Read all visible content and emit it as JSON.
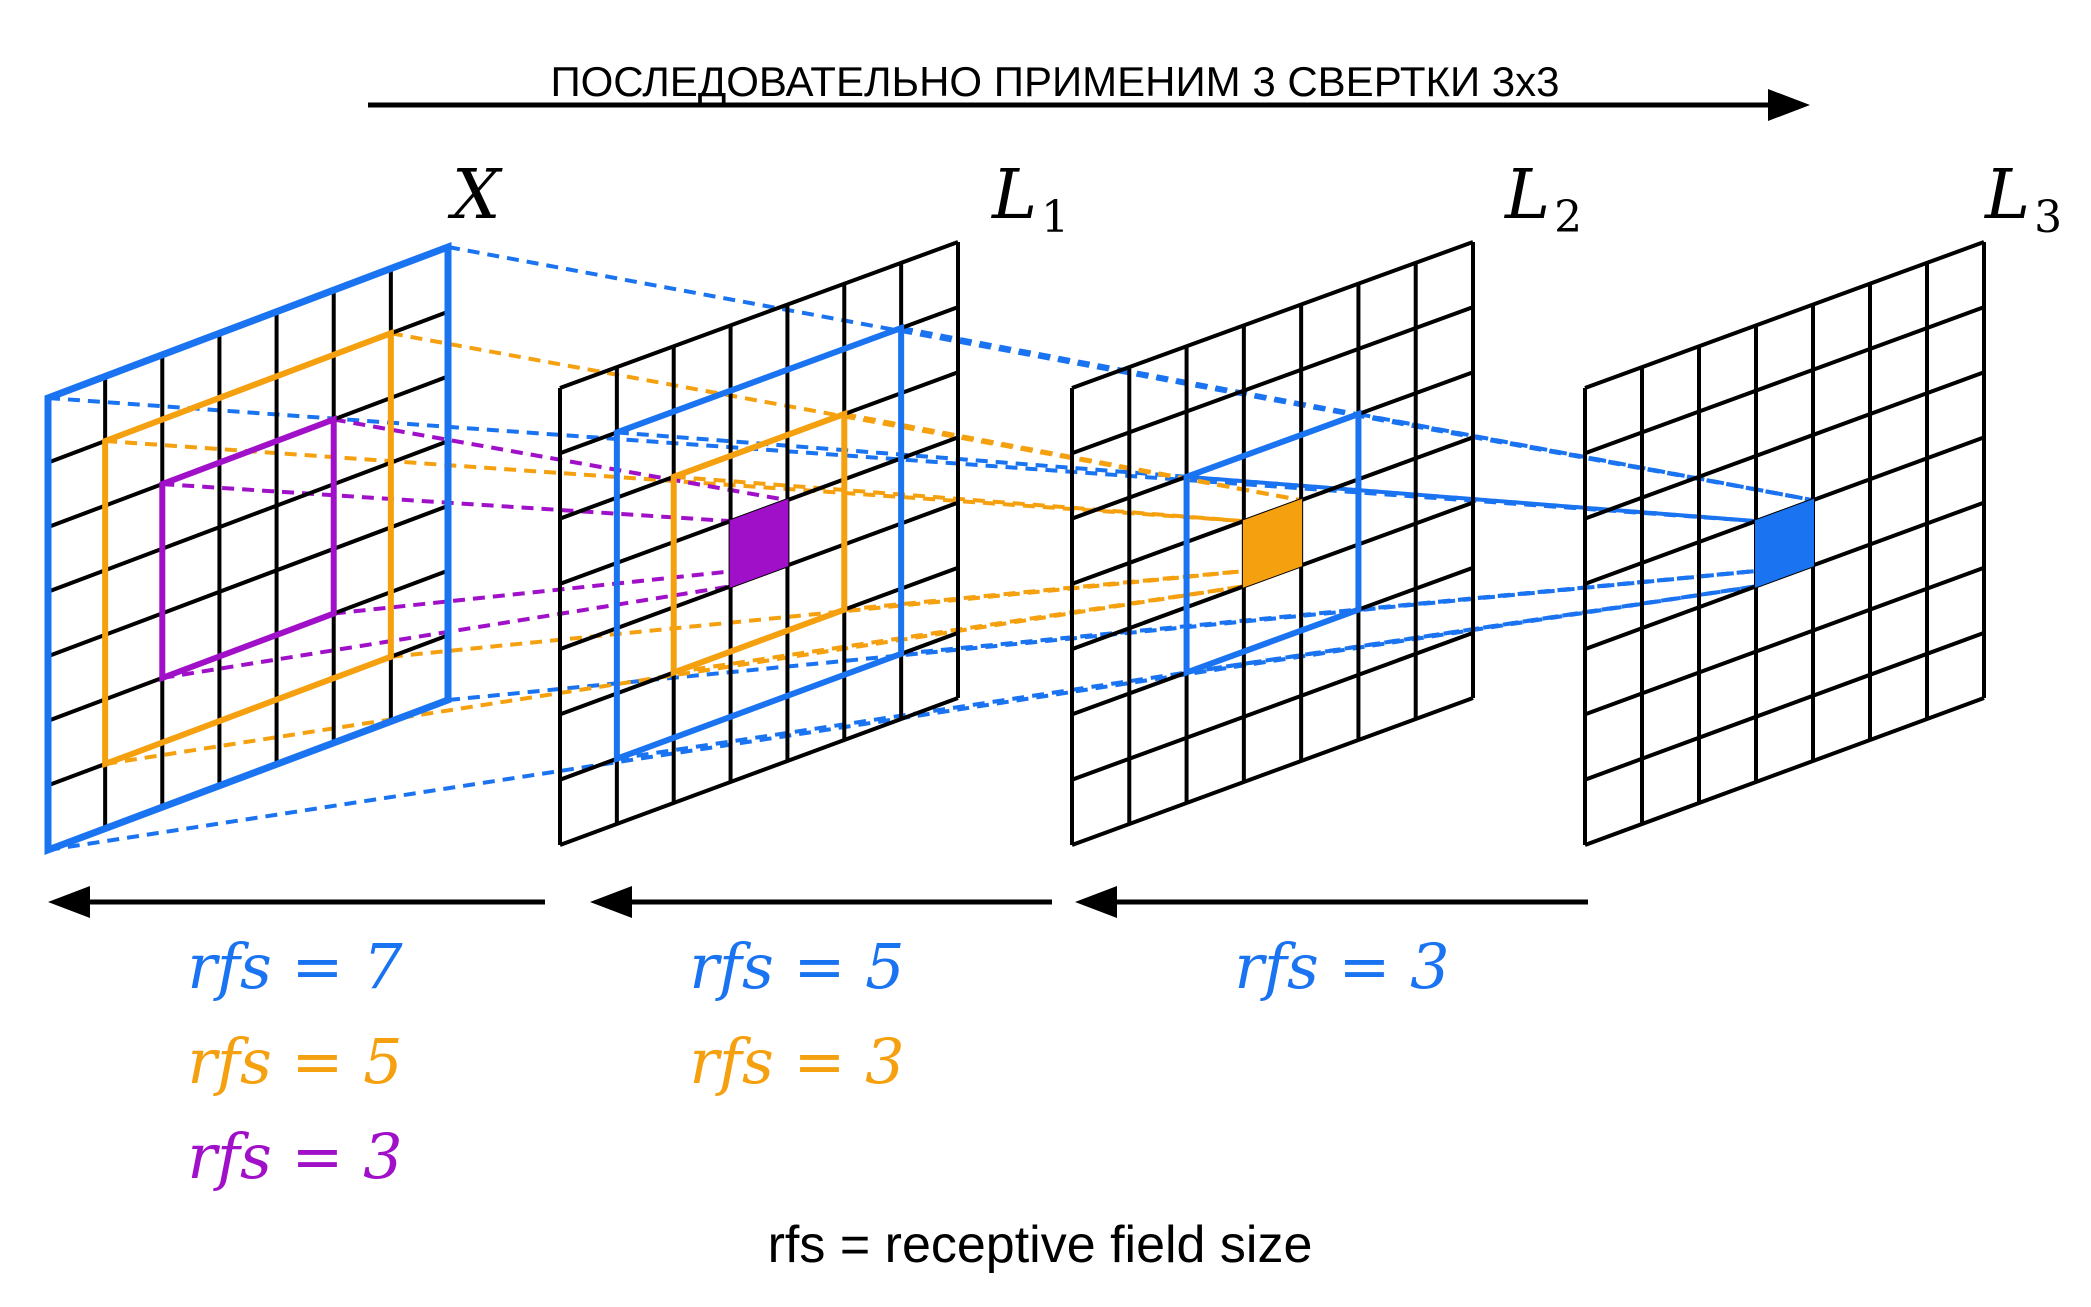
{
  "header": {
    "title": "ПОСЛЕДОВАТЕЛЬНО ПРИМЕНИМ 3 СВЕРТКИ 3x3"
  },
  "layers": [
    {
      "id": "X",
      "label": "X",
      "sub": ""
    },
    {
      "id": "L1",
      "label": "L",
      "sub": "1"
    },
    {
      "id": "L2",
      "label": "L",
      "sub": "2"
    },
    {
      "id": "L3",
      "label": "L",
      "sub": "3"
    }
  ],
  "grid_cells": 7,
  "colors": {
    "blue": "#1a73f0",
    "orange": "#f5a00f",
    "purple": "#a010c8",
    "grid": "#000000"
  },
  "rfs_groups": [
    {
      "id": "x",
      "items": [
        {
          "text": "rfs = 7",
          "color": "blue"
        },
        {
          "text": "rfs = 5",
          "color": "orange"
        },
        {
          "text": "rfs = 3",
          "color": "purple"
        }
      ]
    },
    {
      "id": "l1",
      "items": [
        {
          "text": "rfs = 5",
          "color": "blue"
        },
        {
          "text": "rfs = 3",
          "color": "orange"
        }
      ]
    },
    {
      "id": "l2",
      "items": [
        {
          "text": "rfs = 3",
          "color": "blue"
        }
      ]
    }
  ],
  "footer": {
    "legend": "rfs = receptive field size"
  }
}
